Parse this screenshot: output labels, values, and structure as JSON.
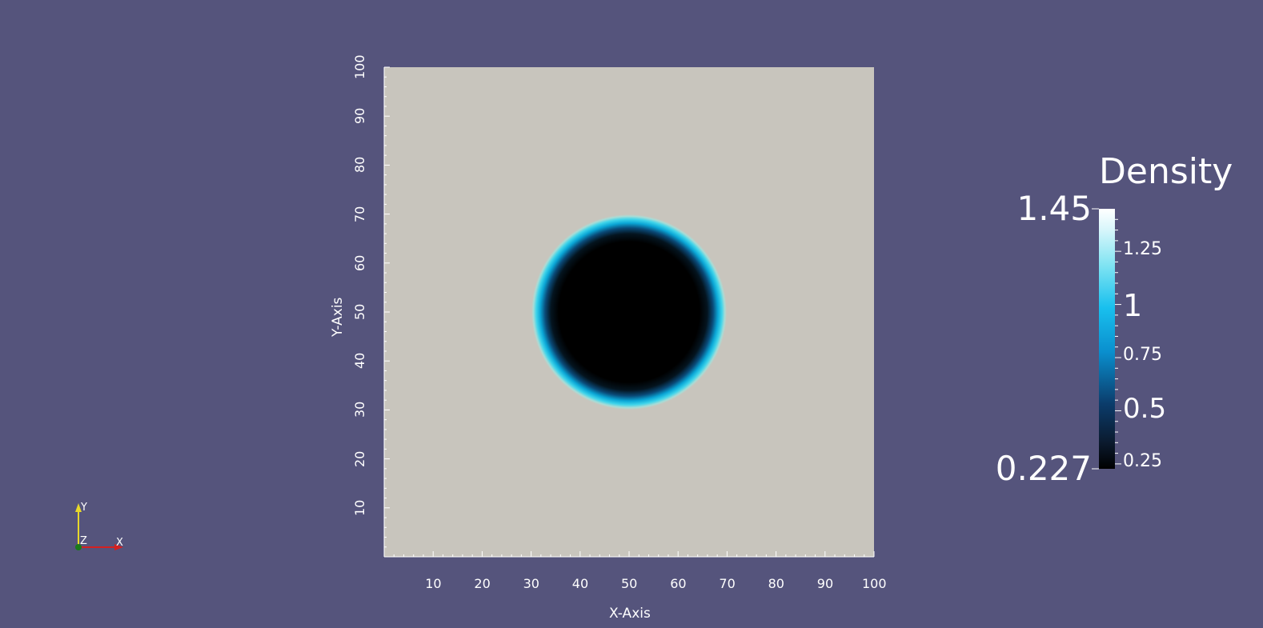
{
  "plot": {
    "x_axis_title": "X-Axis",
    "y_axis_title": "Y-Axis",
    "x_ticks": [
      "10",
      "20",
      "30",
      "40",
      "50",
      "60",
      "70",
      "80",
      "90",
      "100"
    ],
    "y_ticks": [
      "10",
      "20",
      "30",
      "40",
      "50",
      "60",
      "70",
      "80",
      "90",
      "100"
    ],
    "field_background": "#c8c5bd",
    "bubble": {
      "center_x": 50,
      "center_y": 50,
      "radius": 19
    }
  },
  "colorbar": {
    "title": "Density",
    "max_label": "1.45",
    "min_label": "0.227",
    "range": [
      0.227,
      1.45
    ],
    "ticks": [
      {
        "value": 1.25,
        "label": "1.25"
      },
      {
        "value": 1,
        "label": "1"
      },
      {
        "value": 0.75,
        "label": "0.75"
      },
      {
        "value": 0.5,
        "label": "0.5"
      },
      {
        "value": 0.25,
        "label": "0.25"
      }
    ]
  },
  "orientation_axes": {
    "x_label": "X",
    "y_label": "Y",
    "z_label": "Z",
    "x_color": "#d42020",
    "y_color": "#e8d82a",
    "z_color": "#1a7a1a"
  },
  "colors": {
    "background": "#55547c"
  }
}
